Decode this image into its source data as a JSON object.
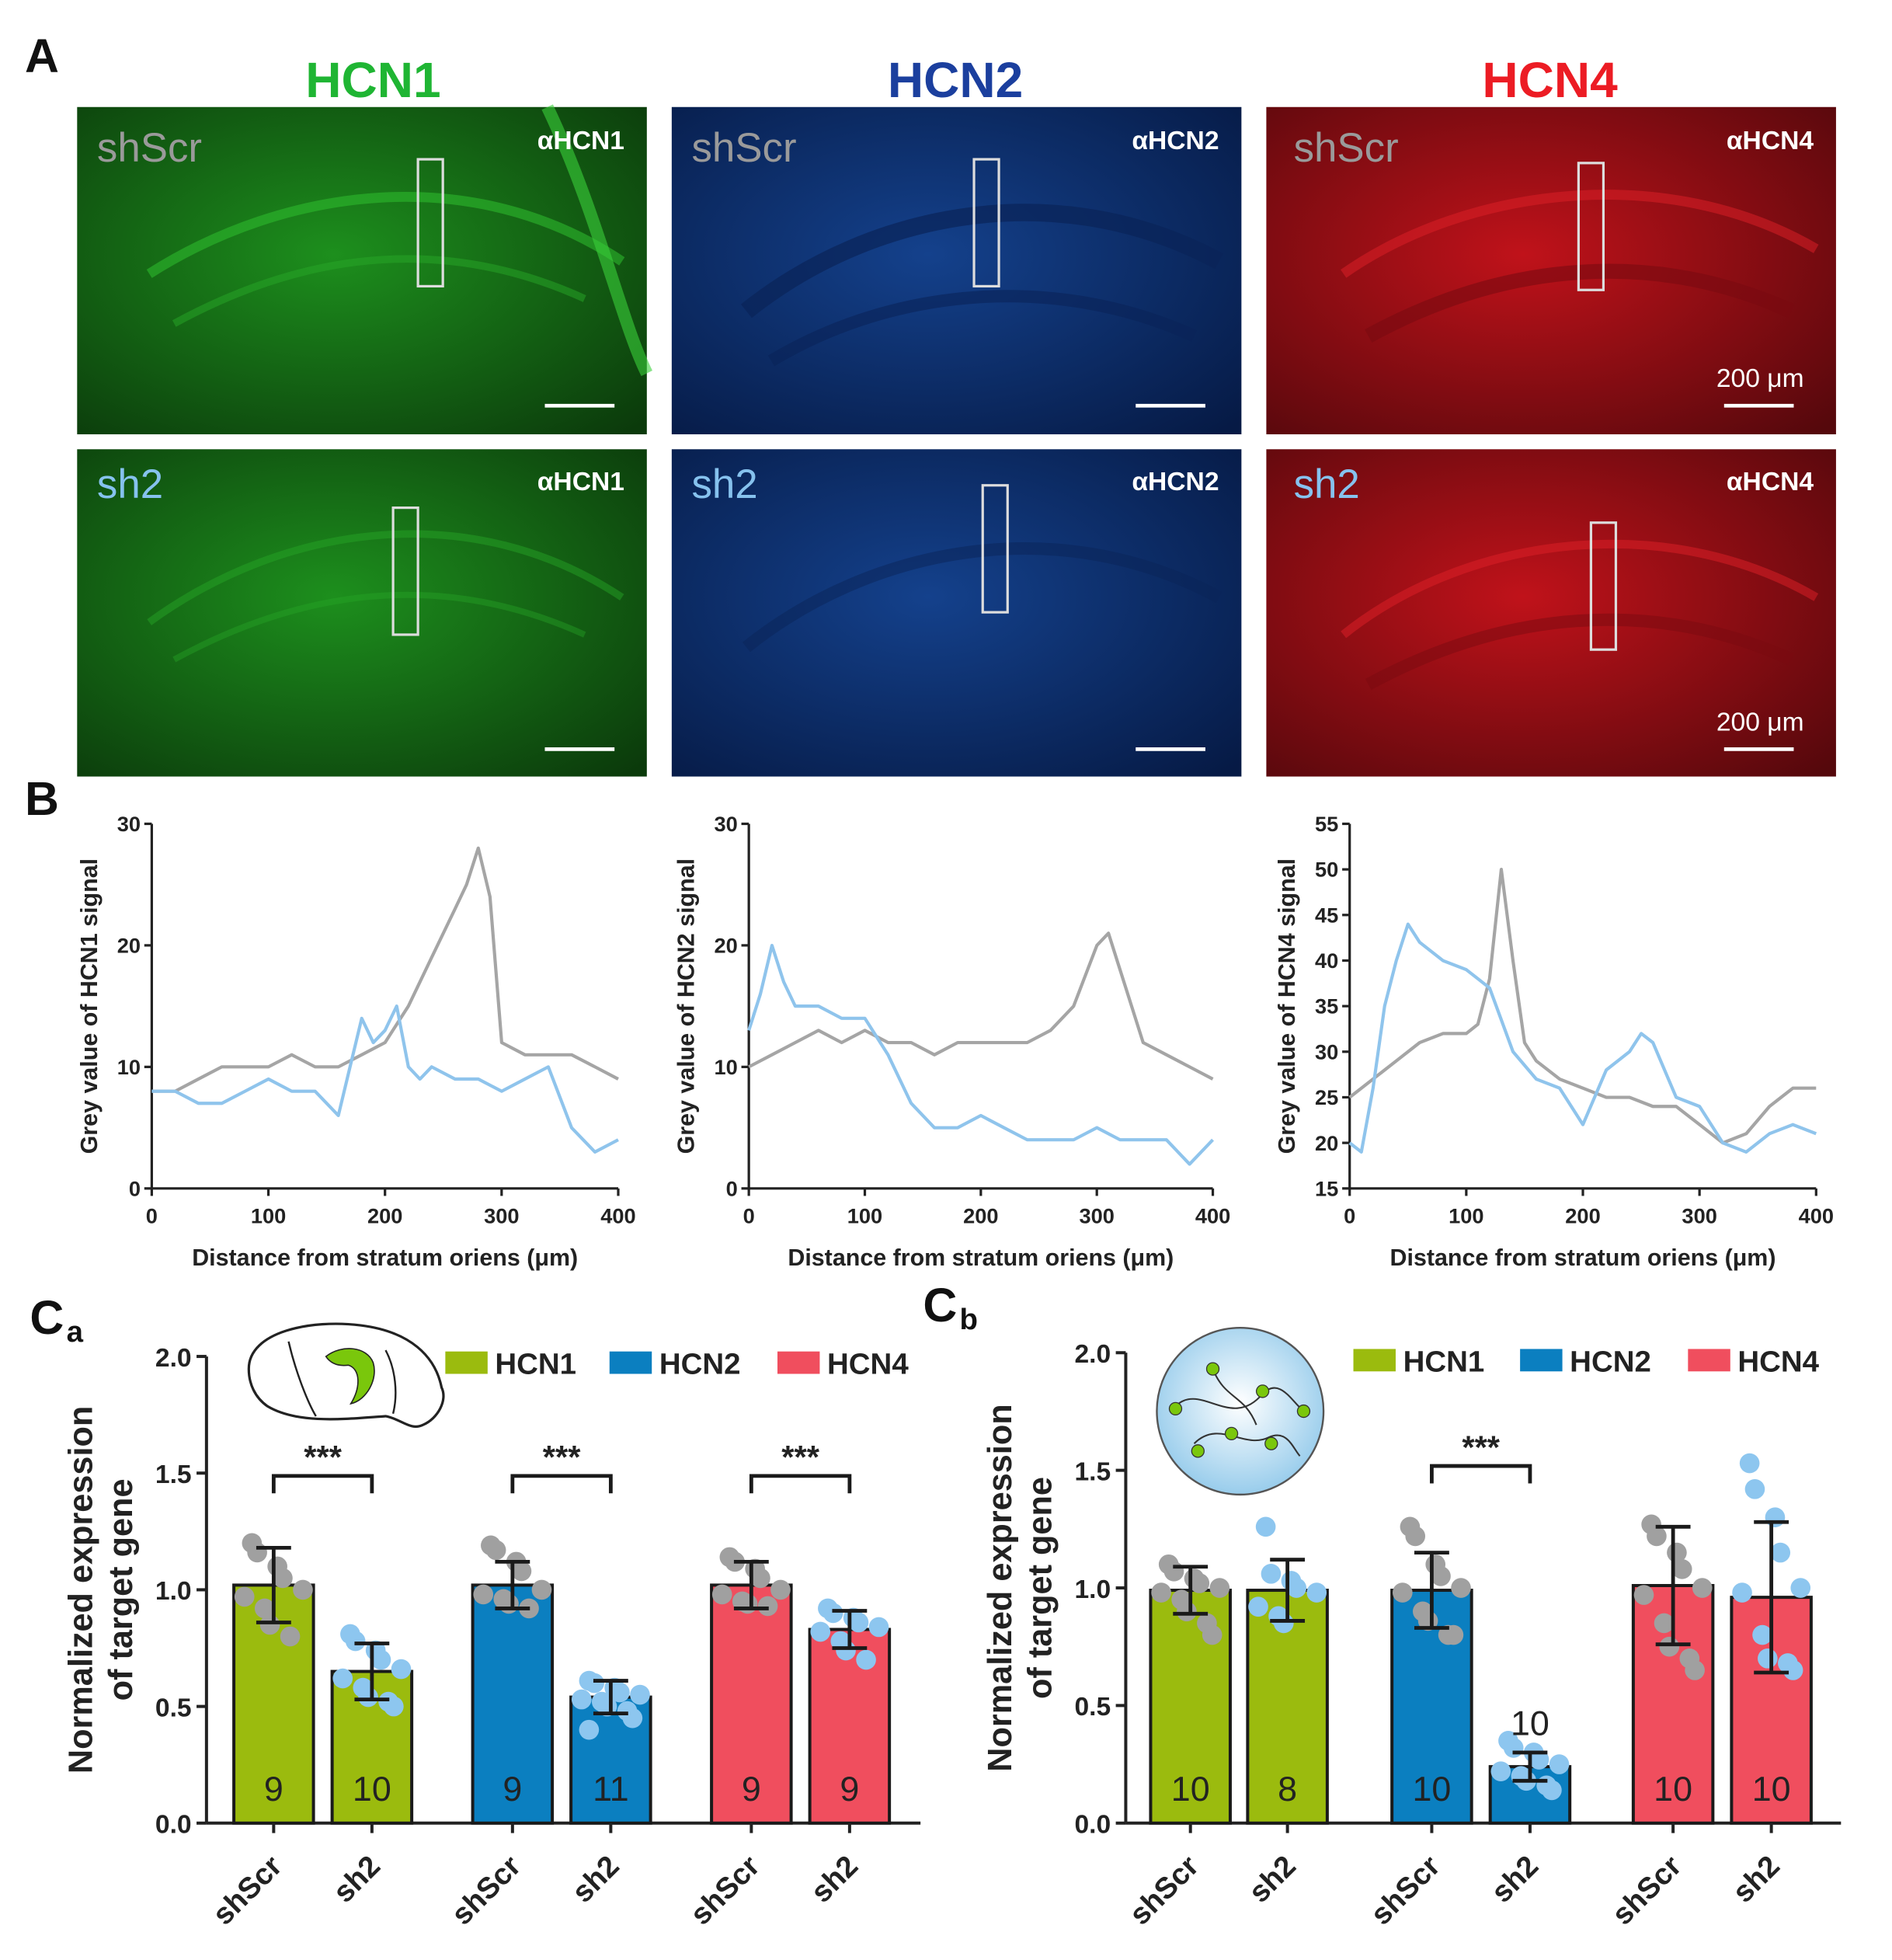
{
  "panel_labels": {
    "a": "A",
    "b": "B",
    "ca_main": "C",
    "ca_sub": "a",
    "cb_main": "C",
    "cb_sub": "b"
  },
  "micrographs": {
    "columns": [
      {
        "title": "HCN1",
        "title_color": "#1fb533",
        "antibody": "αHCN1"
      },
      {
        "title": "HCN2",
        "title_color": "#1b3f9e",
        "antibody": "αHCN2"
      },
      {
        "title": "HCN4",
        "title_color": "#ec1c24",
        "antibody": "αHCN4"
      }
    ],
    "rows": [
      {
        "label": "shScr",
        "label_color": "#9a9a9a"
      },
      {
        "label": "sh2",
        "label_color": "#86c2ee"
      }
    ],
    "scale_bar_label": "200 μm"
  },
  "chart_data": [
    {
      "type": "line",
      "panel": "B-HCN1",
      "xlabel": "Distance from stratum oriens (μm)",
      "ylabel": "Grey value of HCN1 signal",
      "xlim": [
        0,
        400
      ],
      "ylim": [
        0,
        30
      ],
      "xticks": [
        0,
        100,
        200,
        300,
        400
      ],
      "yticks": [
        0,
        10,
        20,
        30
      ],
      "series": [
        {
          "name": "shScr",
          "color": "#a5a5a5",
          "x": [
            0,
            20,
            40,
            60,
            80,
            100,
            120,
            140,
            160,
            180,
            200,
            220,
            240,
            260,
            270,
            280,
            290,
            300,
            320,
            340,
            360,
            380,
            400
          ],
          "y": [
            8,
            8,
            9,
            10,
            10,
            10,
            11,
            10,
            10,
            11,
            12,
            15,
            19,
            23,
            25,
            28,
            24,
            12,
            11,
            11,
            11,
            10,
            9
          ]
        },
        {
          "name": "sh2",
          "color": "#8fc4ec",
          "x": [
            0,
            20,
            40,
            60,
            80,
            100,
            120,
            140,
            160,
            170,
            180,
            190,
            200,
            210,
            220,
            230,
            240,
            260,
            280,
            300,
            320,
            340,
            360,
            380,
            400
          ],
          "y": [
            8,
            8,
            7,
            7,
            8,
            9,
            8,
            8,
            6,
            10,
            14,
            12,
            13,
            15,
            10,
            9,
            10,
            9,
            9,
            8,
            9,
            10,
            5,
            3,
            4
          ]
        }
      ]
    },
    {
      "type": "line",
      "panel": "B-HCN2",
      "xlabel": "Distance from stratum oriens (μm)",
      "ylabel": "Grey value of HCN2 signal",
      "xlim": [
        0,
        400
      ],
      "ylim": [
        0,
        30
      ],
      "xticks": [
        0,
        100,
        200,
        300,
        400
      ],
      "yticks": [
        0,
        10,
        20,
        30
      ],
      "series": [
        {
          "name": "shScr",
          "color": "#a5a5a5",
          "x": [
            0,
            20,
            40,
            60,
            80,
            100,
            120,
            140,
            160,
            180,
            200,
            220,
            240,
            260,
            280,
            300,
            310,
            320,
            340,
            360,
            380,
            400
          ],
          "y": [
            10,
            11,
            12,
            13,
            12,
            13,
            12,
            12,
            11,
            12,
            12,
            12,
            12,
            13,
            15,
            20,
            21,
            18,
            12,
            11,
            10,
            9
          ]
        },
        {
          "name": "sh2",
          "color": "#8fc4ec",
          "x": [
            0,
            10,
            20,
            30,
            40,
            60,
            80,
            100,
            120,
            140,
            160,
            180,
            200,
            220,
            240,
            260,
            280,
            300,
            320,
            340,
            360,
            380,
            400
          ],
          "y": [
            13,
            16,
            20,
            17,
            15,
            15,
            14,
            14,
            11,
            7,
            5,
            5,
            6,
            5,
            4,
            4,
            4,
            5,
            4,
            4,
            4,
            2,
            4
          ]
        }
      ]
    },
    {
      "type": "line",
      "panel": "B-HCN4",
      "xlabel": "Distance from stratum oriens (μm)",
      "ylabel": "Grey value of HCN4 signal",
      "xlim": [
        0,
        400
      ],
      "ylim": [
        15,
        55
      ],
      "xticks": [
        0,
        100,
        200,
        300,
        400
      ],
      "yticks": [
        15,
        20,
        25,
        30,
        35,
        40,
        45,
        50,
        55
      ],
      "series": [
        {
          "name": "shScr",
          "color": "#a5a5a5",
          "x": [
            0,
            20,
            40,
            60,
            80,
            100,
            110,
            120,
            130,
            140,
            150,
            160,
            180,
            200,
            220,
            240,
            260,
            280,
            300,
            320,
            340,
            360,
            380,
            400
          ],
          "y": [
            25,
            27,
            29,
            31,
            32,
            32,
            33,
            38,
            50,
            40,
            31,
            29,
            27,
            26,
            25,
            25,
            24,
            24,
            22,
            20,
            21,
            24,
            26,
            26
          ]
        },
        {
          "name": "sh2",
          "color": "#8fc4ec",
          "x": [
            0,
            10,
            20,
            30,
            40,
            50,
            60,
            80,
            100,
            120,
            140,
            160,
            180,
            200,
            220,
            240,
            250,
            260,
            280,
            300,
            320,
            340,
            360,
            380,
            400
          ],
          "y": [
            20,
            19,
            26,
            35,
            40,
            44,
            42,
            40,
            39,
            37,
            30,
            27,
            26,
            22,
            28,
            30,
            32,
            31,
            25,
            24,
            20,
            19,
            21,
            22,
            21
          ]
        }
      ]
    },
    {
      "type": "bar",
      "panel": "Ca",
      "ylabel": "Normalized expression of target gene",
      "ylim": [
        0,
        2
      ],
      "yticks": [
        "0.0",
        "0.5",
        "1.0",
        "1.5",
        "2.0"
      ],
      "categories": [
        "shScr",
        "sh2",
        "shScr",
        "sh2",
        "shScr",
        "sh2"
      ],
      "legend": [
        "HCN1",
        "HCN2",
        "HCN4"
      ],
      "legend_colors": [
        "#9bbb0e",
        "#0b7fc0",
        "#f04e5e"
      ],
      "groups": [
        "HCN1",
        "HCN1",
        "HCN2",
        "HCN2",
        "HCN4",
        "HCN4"
      ],
      "values": [
        1.02,
        0.65,
        1.02,
        0.54,
        1.02,
        0.83
      ],
      "errors": [
        0.16,
        0.12,
        0.1,
        0.07,
        0.1,
        0.08
      ],
      "n": [
        "9",
        "10",
        "9",
        "11",
        "9",
        "9"
      ],
      "points": [
        [
          1.2,
          1.16,
          1.1,
          1.05,
          1.0,
          0.97,
          0.92,
          0.85,
          0.8
        ],
        [
          0.81,
          0.78,
          0.74,
          0.7,
          0.66,
          0.62,
          0.58,
          0.54,
          0.52,
          0.5
        ],
        [
          1.19,
          1.17,
          1.12,
          1.08,
          1.0,
          0.98,
          0.96,
          0.94,
          0.92
        ],
        [
          0.61,
          0.6,
          0.58,
          0.56,
          0.55,
          0.53,
          0.52,
          0.5,
          0.48,
          0.45,
          0.4
        ],
        [
          1.14,
          1.12,
          1.09,
          1.05,
          1.0,
          0.98,
          0.95,
          0.94,
          0.93
        ],
        [
          0.92,
          0.9,
          0.88,
          0.86,
          0.84,
          0.82,
          0.78,
          0.74,
          0.7
        ]
      ],
      "significance": [
        {
          "from": 0,
          "to": 1,
          "label": "***"
        },
        {
          "from": 2,
          "to": 3,
          "label": "***"
        },
        {
          "from": 4,
          "to": 5,
          "label": "***"
        }
      ]
    },
    {
      "type": "bar",
      "panel": "Cb",
      "ylabel": "Normalized expression of target gene",
      "ylim": [
        0,
        2
      ],
      "yticks": [
        "0.0",
        "0.5",
        "1.0",
        "1.5",
        "2.0"
      ],
      "categories": [
        "shScr",
        "sh2",
        "shScr",
        "sh2",
        "shScr",
        "sh2"
      ],
      "legend": [
        "HCN1",
        "HCN2",
        "HCN4"
      ],
      "legend_colors": [
        "#9bbb0e",
        "#0b7fc0",
        "#f04e5e"
      ],
      "groups": [
        "HCN1",
        "HCN1",
        "HCN2",
        "HCN2",
        "HCN4",
        "HCN4"
      ],
      "values": [
        0.99,
        0.99,
        0.99,
        0.24,
        1.01,
        0.96
      ],
      "errors": [
        0.1,
        0.13,
        0.16,
        0.06,
        0.25,
        0.32
      ],
      "n": [
        "10",
        "8",
        "10",
        "10",
        "10",
        "10"
      ],
      "n_outside": [
        false,
        false,
        false,
        true,
        false,
        false
      ],
      "points": [
        [
          1.1,
          1.07,
          1.04,
          1.02,
          1.0,
          0.98,
          0.95,
          0.9,
          0.85,
          0.8
        ],
        [
          1.26,
          1.06,
          1.03,
          1.0,
          0.98,
          0.92,
          0.88,
          0.85
        ],
        [
          1.26,
          1.22,
          1.1,
          1.05,
          1.0,
          0.98,
          0.9,
          0.86,
          0.8,
          0.8
        ],
        [
          0.35,
          0.32,
          0.3,
          0.27,
          0.25,
          0.22,
          0.2,
          0.18,
          0.16,
          0.14
        ],
        [
          1.27,
          1.22,
          1.15,
          1.08,
          1.0,
          0.97,
          0.85,
          0.75,
          0.7,
          0.65
        ],
        [
          1.53,
          1.42,
          1.3,
          1.15,
          1.0,
          0.98,
          0.8,
          0.7,
          0.68,
          0.65
        ]
      ],
      "significance": [
        {
          "from": 2,
          "to": 3,
          "label": "***"
        }
      ]
    }
  ]
}
